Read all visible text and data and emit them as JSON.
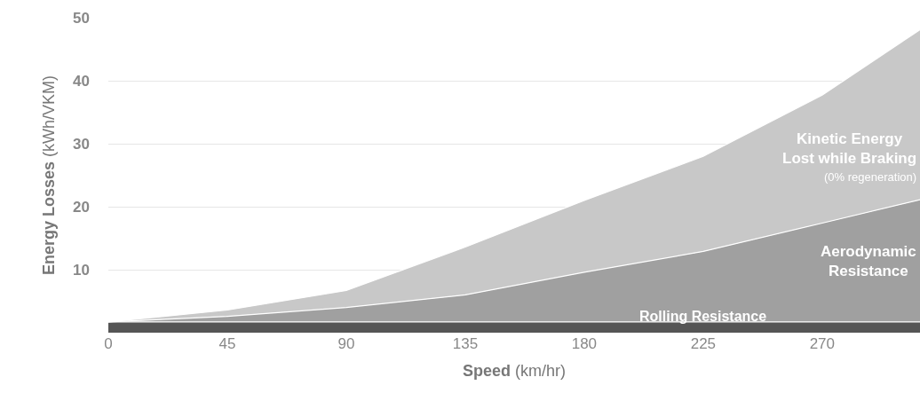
{
  "chart_data": {
    "type": "area",
    "stacked": true,
    "xlabel": "Speed (km/hr)",
    "ylabel": "Energy Losses (kWh/VKM)",
    "x": [
      0,
      45,
      90,
      135,
      180,
      225,
      270,
      307
    ],
    "series": [
      {
        "name": "Rolling Resistance",
        "color": "#555555",
        "values": [
          1.7,
          1.7,
          1.7,
          1.7,
          1.7,
          1.7,
          1.7,
          1.7
        ]
      },
      {
        "name": "Aerodynamic\nResistance",
        "color": "#a0a0a0",
        "values": [
          0,
          0.9,
          2.3,
          4.3,
          7.9,
          11.2,
          15.7,
          19.4
        ]
      },
      {
        "name": "Kinetic Energy\nLost while Braking",
        "color": "#c8c8c8",
        "values": [
          0,
          1.0,
          2.7,
          7.6,
          11.4,
          15.1,
          20.3,
          27.0
        ]
      }
    ],
    "annotations": [
      "(0% regeneration)"
    ],
    "xlim": [
      0,
      307
    ],
    "ylim": [
      0,
      50
    ],
    "xticks": [
      0,
      45,
      90,
      135,
      180,
      225,
      270
    ],
    "yticks": [
      10,
      20,
      30,
      40,
      50
    ],
    "grid": "y",
    "legend": false
  }
}
